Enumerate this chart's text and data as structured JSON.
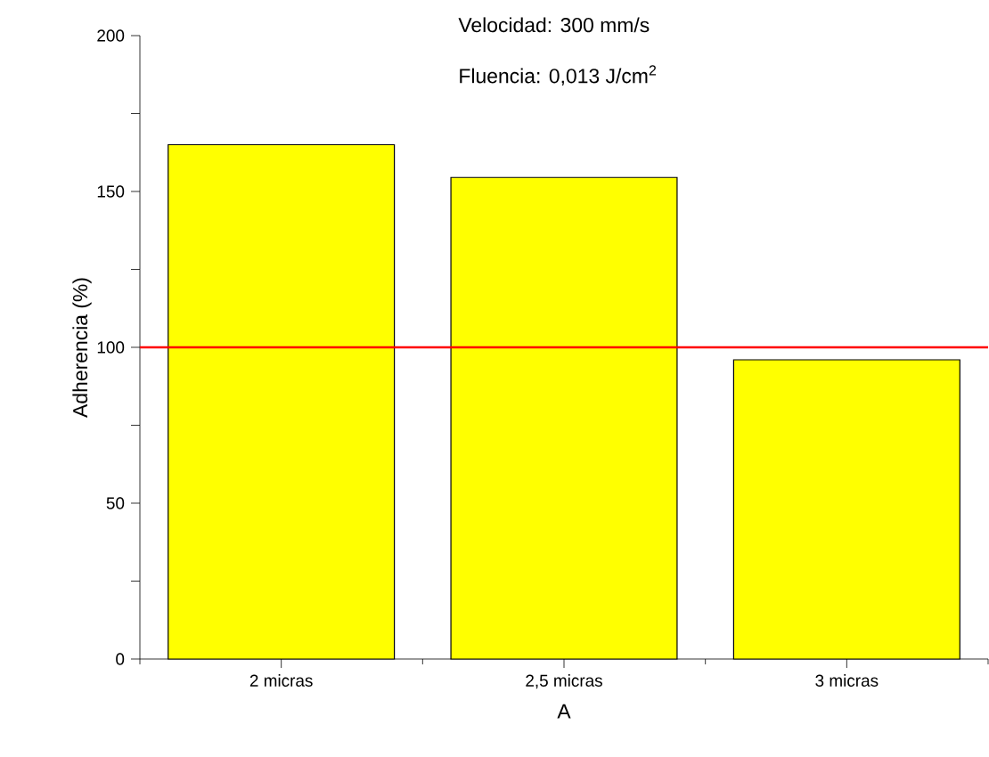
{
  "chart_data": {
    "type": "bar",
    "xlabel": "A",
    "ylabel": "Adherencia (%)",
    "categories": [
      "2 micras",
      "2,5 micras",
      "3 micras"
    ],
    "values": [
      165,
      154.5,
      96
    ],
    "color": "#ffff00",
    "ylim": [
      0,
      200
    ],
    "yticks": [
      0,
      {
        "value": 25,
        "label": null
      },
      50,
      {
        "value": 75,
        "label": null
      },
      100,
      {
        "value": 125,
        "label": null
      },
      150,
      {
        "value": 175,
        "label": null
      },
      200
    ],
    "ref_lines": [
      {
        "axis": "y",
        "value": 100,
        "color": "#ff0000"
      }
    ],
    "annotations": [
      "Velocidad: 300 mm/s",
      "Fluencia: 0,013 J/cm$^{2}$"
    ],
    "grid": false
  }
}
